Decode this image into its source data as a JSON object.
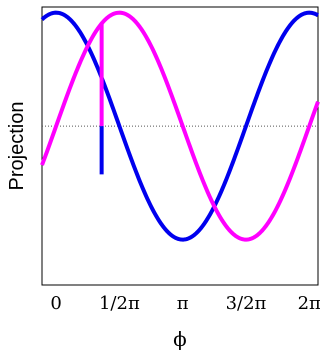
{
  "chart_data": {
    "type": "line",
    "xlabel": "ϕ",
    "ylabel": "Projection",
    "xlim": [
      -0.35,
      6.5
    ],
    "ylim": [
      -1.4,
      1.05
    ],
    "x_ticks": [
      {
        "value": 0,
        "label": "0"
      },
      {
        "value": 1.5708,
        "label": "1/2π"
      },
      {
        "value": 3.1416,
        "label": "π"
      },
      {
        "value": 4.7124,
        "label": "3/2π"
      },
      {
        "value": 6.2832,
        "label": "2π"
      }
    ],
    "grid": false,
    "zero_line": {
      "y": 0,
      "style": "dotted",
      "color": "#555555"
    },
    "series": [
      {
        "function": "cos(x)",
        "x_range": [
          -0.35,
          6.5
        ],
        "color": "#0000ee"
      },
      {
        "function": "sin(x)",
        "x_range": [
          -0.35,
          6.5
        ],
        "color": "#ff00ff"
      }
    ],
    "marker_line": {
      "x": 1.13,
      "y_top": 0.905,
      "y_mid": 0.0,
      "y_bottom": -0.425,
      "upper_color": "#ff00ff",
      "lower_color": "#0000ee"
    }
  }
}
